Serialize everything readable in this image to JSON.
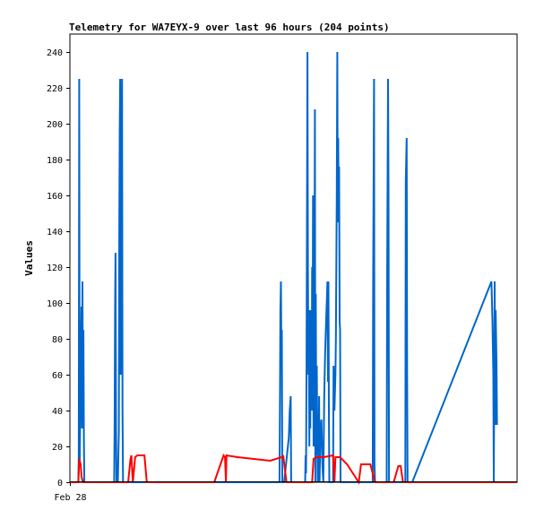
{
  "chart_data": {
    "type": "line",
    "title": "Telemetry for WA7EYX-9 over last 96 hours (204 points)",
    "xlabel": "",
    "ylabel": "Values",
    "ylim": [
      0,
      250
    ],
    "yticks": [
      0,
      20,
      40,
      60,
      80,
      100,
      120,
      140,
      160,
      180,
      200,
      220,
      240
    ],
    "xlim": [
      0,
      96
    ],
    "xtick_labels": [
      {
        "x": 0,
        "label": "Feb 28"
      }
    ],
    "grid": false,
    "legend": "none",
    "series": [
      {
        "color": "#0066cc",
        "points": [
          [
            0.0,
            0
          ],
          [
            1.8,
            0
          ],
          [
            1.9,
            15
          ],
          [
            2.0,
            225
          ],
          [
            2.1,
            10
          ],
          [
            2.3,
            60
          ],
          [
            2.5,
            98
          ],
          [
            2.6,
            30
          ],
          [
            2.7,
            112
          ],
          [
            2.8,
            40
          ],
          [
            2.9,
            85
          ],
          [
            3.0,
            25
          ],
          [
            3.1,
            0
          ],
          [
            9.5,
            0
          ],
          [
            9.6,
            32
          ],
          [
            9.7,
            96
          ],
          [
            9.8,
            128
          ],
          [
            9.9,
            30
          ],
          [
            10.0,
            0
          ],
          [
            10.3,
            0
          ],
          [
            10.5,
            28
          ],
          [
            10.6,
            140
          ],
          [
            10.7,
            196
          ],
          [
            10.8,
            225
          ],
          [
            10.9,
            60
          ],
          [
            11.0,
            112
          ],
          [
            11.1,
            168
          ],
          [
            11.2,
            225
          ],
          [
            11.3,
            40
          ],
          [
            11.4,
            0
          ],
          [
            45.0,
            0
          ],
          [
            45.1,
            45
          ],
          [
            45.2,
            96
          ],
          [
            45.3,
            112
          ],
          [
            45.4,
            70
          ],
          [
            45.5,
            85
          ],
          [
            45.6,
            0
          ],
          [
            46.0,
            0
          ],
          [
            47.0,
            25
          ],
          [
            47.2,
            40
          ],
          [
            47.4,
            48
          ],
          [
            47.5,
            0
          ],
          [
            50.5,
            0
          ],
          [
            50.6,
            15
          ],
          [
            50.7,
            5
          ],
          [
            50.8,
            72
          ],
          [
            51.0,
            240
          ],
          [
            51.1,
            120
          ],
          [
            51.2,
            60
          ],
          [
            51.3,
            80
          ],
          [
            51.4,
            20
          ],
          [
            51.5,
            96
          ],
          [
            51.6,
            30
          ],
          [
            51.7,
            80
          ],
          [
            51.8,
            96
          ],
          [
            51.9,
            40
          ],
          [
            52.0,
            120
          ],
          [
            52.1,
            60
          ],
          [
            52.2,
            160
          ],
          [
            52.3,
            20
          ],
          [
            52.4,
            150
          ],
          [
            52.5,
            100
          ],
          [
            52.6,
            208
          ],
          [
            52.7,
            0
          ],
          [
            52.8,
            105
          ],
          [
            52.9,
            15
          ],
          [
            53.0,
            65
          ],
          [
            53.1,
            30
          ],
          [
            53.2,
            0
          ],
          [
            53.4,
            20
          ],
          [
            53.5,
            48
          ],
          [
            53.6,
            0
          ],
          [
            53.8,
            30
          ],
          [
            54.0,
            35
          ],
          [
            54.2,
            10
          ],
          [
            54.4,
            0
          ],
          [
            54.6,
            48
          ],
          [
            54.8,
            72
          ],
          [
            55.0,
            90
          ],
          [
            55.2,
            104
          ],
          [
            55.3,
            112
          ],
          [
            55.4,
            56
          ],
          [
            55.5,
            112
          ],
          [
            55.6,
            40
          ],
          [
            55.7,
            0
          ],
          [
            56.5,
            0
          ],
          [
            56.6,
            65
          ],
          [
            56.7,
            56
          ],
          [
            56.8,
            40
          ],
          [
            57.0,
            60
          ],
          [
            57.1,
            80
          ],
          [
            57.3,
            160
          ],
          [
            57.4,
            240
          ],
          [
            57.5,
            145
          ],
          [
            57.6,
            192
          ],
          [
            57.7,
            150
          ],
          [
            57.8,
            176
          ],
          [
            57.9,
            90
          ],
          [
            58.0,
            85
          ],
          [
            58.1,
            0
          ],
          [
            65.0,
            0
          ],
          [
            65.1,
            112
          ],
          [
            65.3,
            225
          ],
          [
            65.4,
            10
          ],
          [
            65.5,
            0
          ],
          [
            68.0,
            0
          ],
          [
            68.1,
            112
          ],
          [
            68.3,
            225
          ],
          [
            68.4,
            168
          ],
          [
            68.5,
            0
          ],
          [
            72.0,
            0
          ],
          [
            72.1,
            168
          ],
          [
            72.3,
            192
          ],
          [
            72.4,
            60
          ],
          [
            72.5,
            0
          ],
          [
            73.5,
            0
          ],
          [
            90.5,
            112
          ],
          [
            90.7,
            90
          ],
          [
            90.9,
            60
          ],
          [
            91.0,
            0
          ],
          [
            91.1,
            56
          ],
          [
            91.2,
            112
          ],
          [
            91.3,
            32
          ],
          [
            91.4,
            96
          ],
          [
            91.6,
            65
          ],
          [
            91.7,
            32
          ]
        ]
      },
      {
        "color": "#ff0000",
        "points": [
          [
            0.0,
            0
          ],
          [
            1.8,
            0
          ],
          [
            2.0,
            13
          ],
          [
            2.3,
            10
          ],
          [
            2.5,
            3
          ],
          [
            2.8,
            0
          ],
          [
            12.5,
            0
          ],
          [
            13.0,
            13
          ],
          [
            13.2,
            15
          ],
          [
            13.5,
            0
          ],
          [
            14.0,
            14
          ],
          [
            14.5,
            15
          ],
          [
            15.5,
            15
          ],
          [
            16.0,
            15
          ],
          [
            16.5,
            0
          ],
          [
            31.0,
            0
          ],
          [
            33.0,
            15
          ],
          [
            33.3,
            14
          ],
          [
            33.5,
            0
          ],
          [
            33.6,
            15
          ],
          [
            36.0,
            14
          ],
          [
            39.5,
            13
          ],
          [
            43.0,
            12
          ],
          [
            45.5,
            14
          ],
          [
            45.8,
            14.5
          ],
          [
            46.5,
            0
          ],
          [
            52.0,
            0
          ],
          [
            52.3,
            13
          ],
          [
            53.0,
            14
          ],
          [
            54.5,
            14
          ],
          [
            56.5,
            15
          ],
          [
            56.8,
            0
          ],
          [
            57.0,
            14
          ],
          [
            58.0,
            14
          ],
          [
            59.5,
            10
          ],
          [
            62.0,
            0
          ],
          [
            62.5,
            10
          ],
          [
            63.0,
            10
          ],
          [
            64.5,
            10
          ],
          [
            65.5,
            0
          ],
          [
            69.5,
            0
          ],
          [
            70.5,
            9
          ],
          [
            71.0,
            9
          ],
          [
            71.5,
            0
          ],
          [
            96.0,
            0
          ]
        ]
      }
    ]
  }
}
